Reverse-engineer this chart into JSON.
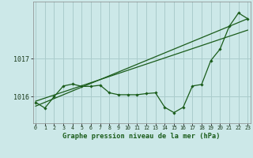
{
  "xlabel": "Graphe pression niveau de la mer (hPa)",
  "background_color": "#cce8e8",
  "grid_color": "#aacccc",
  "line_color": "#1a5c1a",
  "spine_color": "#888888",
  "x_ticks": [
    0,
    1,
    2,
    3,
    4,
    5,
    6,
    7,
    8,
    9,
    10,
    11,
    12,
    13,
    14,
    15,
    16,
    17,
    18,
    19,
    20,
    21,
    22,
    23
  ],
  "y_ticks": [
    1016,
    1017
  ],
  "ylim": [
    1015.3,
    1018.5
  ],
  "xlim": [
    -0.3,
    23.3
  ],
  "series1": [
    1015.85,
    1015.7,
    1016.0,
    1016.28,
    1016.33,
    1016.27,
    1016.27,
    1016.3,
    1016.1,
    1016.05,
    1016.05,
    1016.05,
    1016.08,
    1016.1,
    1015.72,
    1015.58,
    1015.72,
    1016.28,
    1016.32,
    1016.95,
    1017.25,
    1017.85,
    1018.2,
    1018.05
  ],
  "trend1_x": [
    0,
    23
  ],
  "trend1_y": [
    1015.75,
    1018.05
  ],
  "trend2_x": [
    0,
    23
  ],
  "trend2_y": [
    1015.88,
    1017.75
  ]
}
